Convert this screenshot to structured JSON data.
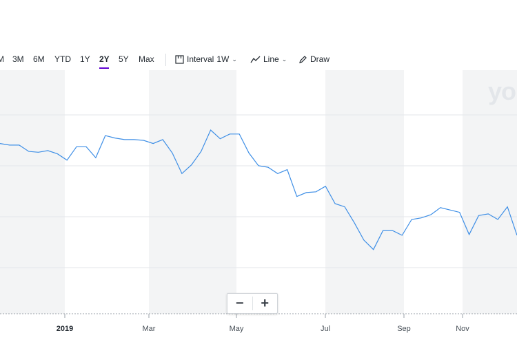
{
  "toolbar": {
    "ranges": [
      "M",
      "3M",
      "6M",
      "YTD",
      "1Y",
      "2Y",
      "5Y",
      "Max"
    ],
    "active_range": "2Y",
    "interval_label": "Interval",
    "interval_value": "1W",
    "chart_type_label": "Line",
    "draw_label": "Draw",
    "icons": [
      "candlestick-icon",
      "line-chart-icon",
      "pencil-icon",
      "chevron-down-icon"
    ]
  },
  "zoom": {
    "minus": "−",
    "plus": "+"
  },
  "watermark": "yo",
  "colors": {
    "line": "#3d8ee6",
    "band": "#f3f4f5",
    "grid": "#e3e6ea",
    "accent": "#6001d2"
  },
  "chart_data": {
    "type": "line",
    "x_tick_labels": [
      "2019",
      "Mar",
      "May",
      "Jul",
      "Sep",
      "Nov"
    ],
    "x_tick_bold": "2019",
    "y_tick_labels": [],
    "grid": true,
    "series": [
      {
        "values": [
          68,
          67,
          67,
          63,
          62.5,
          63.5,
          61.5,
          57.5,
          66,
          66,
          59,
          73,
          71.5,
          70.5,
          70.5,
          70,
          68,
          70.5,
          62,
          49,
          54.5,
          63,
          76.5,
          71,
          74,
          74,
          62,
          54,
          53,
          49,
          51.5,
          34.5,
          37,
          37.5,
          41,
          30,
          28,
          18,
          7,
          1,
          13,
          13,
          10,
          20,
          21,
          23,
          27.5,
          26,
          24.5,
          10.5,
          22.5,
          23.5,
          20,
          28,
          10
        ]
      }
    ]
  }
}
